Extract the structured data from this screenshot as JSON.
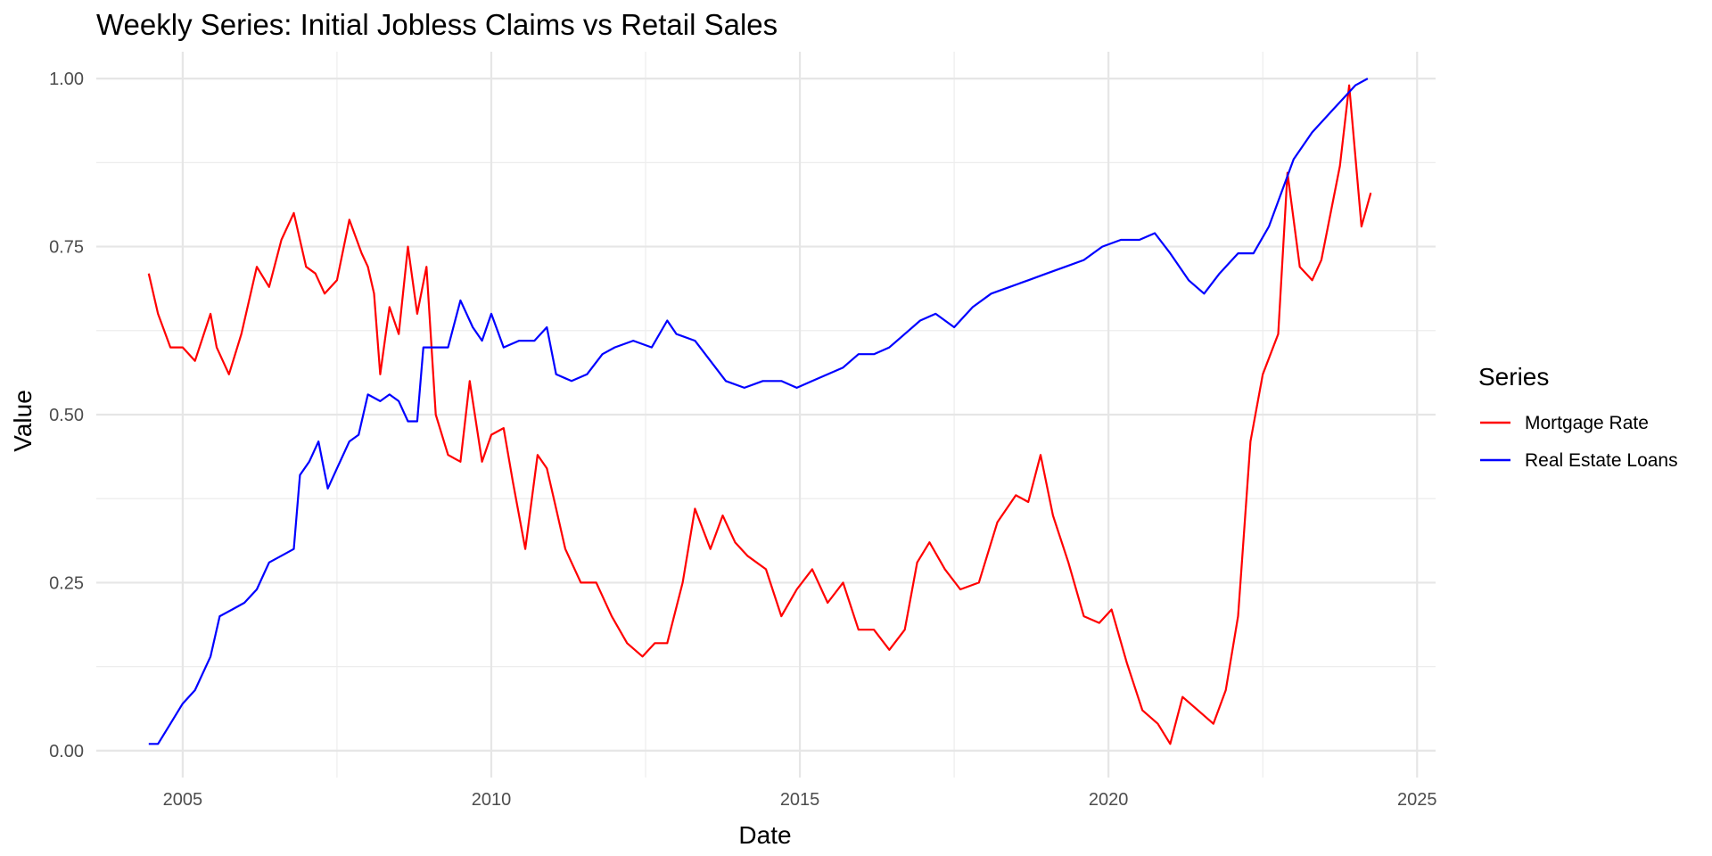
{
  "chart_data": {
    "type": "line",
    "title": "Weekly Series: Initial Jobless Claims vs Retail Sales",
    "xlabel": "Date",
    "ylabel": "Value",
    "xlim": [
      2003.6,
      2025.3
    ],
    "ylim": [
      -0.04,
      1.04
    ],
    "x_ticks": [
      2005,
      2010,
      2015,
      2020,
      2025
    ],
    "x_tick_labels": [
      "2005",
      "2010",
      "2015",
      "2020",
      "2025"
    ],
    "y_ticks": [
      0,
      0.25,
      0.5,
      0.75,
      1.0
    ],
    "y_tick_labels": [
      "0.00",
      "0.25",
      "0.50",
      "0.75",
      "1.00"
    ],
    "grid": true,
    "legend": {
      "title": "Series",
      "position": "right"
    },
    "series": [
      {
        "name": "Mortgage Rate",
        "color": "#ff0000",
        "x": [
          2004.45,
          2004.6,
          2004.8,
          2005.0,
          2005.2,
          2005.45,
          2005.55,
          2005.75,
          2005.95,
          2006.2,
          2006.4,
          2006.6,
          2006.8,
          2007.0,
          2007.15,
          2007.3,
          2007.5,
          2007.7,
          2007.9,
          2008.0,
          2008.1,
          2008.2,
          2008.35,
          2008.5,
          2008.65,
          2008.8,
          2008.95,
          2009.1,
          2009.3,
          2009.5,
          2009.65,
          2009.85,
          2010.0,
          2010.2,
          2010.35,
          2010.55,
          2010.75,
          2010.9,
          2011.05,
          2011.2,
          2011.45,
          2011.7,
          2011.95,
          2012.2,
          2012.45,
          2012.65,
          2012.85,
          2013.1,
          2013.3,
          2013.55,
          2013.75,
          2013.95,
          2014.15,
          2014.45,
          2014.7,
          2014.95,
          2015.2,
          2015.45,
          2015.7,
          2015.95,
          2016.2,
          2016.45,
          2016.7,
          2016.9,
          2017.1,
          2017.35,
          2017.6,
          2017.9,
          2018.2,
          2018.5,
          2018.7,
          2018.9,
          2019.1,
          2019.35,
          2019.6,
          2019.85,
          2020.05,
          2020.3,
          2020.55,
          2020.8,
          2021.0,
          2021.2,
          2021.45,
          2021.7,
          2021.9,
          2022.1,
          2022.3,
          2022.5,
          2022.75,
          2022.9,
          2023.1,
          2023.3,
          2023.45,
          2023.6,
          2023.75,
          2023.9,
          2024.1,
          2024.25
        ],
        "y": [
          0.71,
          0.65,
          0.6,
          0.6,
          0.58,
          0.65,
          0.6,
          0.56,
          0.62,
          0.72,
          0.69,
          0.76,
          0.8,
          0.72,
          0.71,
          0.68,
          0.7,
          0.79,
          0.74,
          0.72,
          0.68,
          0.56,
          0.66,
          0.62,
          0.75,
          0.65,
          0.72,
          0.5,
          0.44,
          0.43,
          0.55,
          0.43,
          0.47,
          0.48,
          0.4,
          0.3,
          0.44,
          0.42,
          0.36,
          0.3,
          0.25,
          0.25,
          0.2,
          0.16,
          0.14,
          0.16,
          0.16,
          0.25,
          0.36,
          0.3,
          0.35,
          0.31,
          0.29,
          0.27,
          0.2,
          0.24,
          0.27,
          0.22,
          0.25,
          0.18,
          0.18,
          0.15,
          0.18,
          0.28,
          0.31,
          0.27,
          0.24,
          0.25,
          0.34,
          0.38,
          0.37,
          0.44,
          0.35,
          0.28,
          0.2,
          0.19,
          0.21,
          0.13,
          0.06,
          0.04,
          0.01,
          0.08,
          0.06,
          0.04,
          0.09,
          0.2,
          0.46,
          0.56,
          0.62,
          0.86,
          0.72,
          0.7,
          0.73,
          0.8,
          0.87,
          0.99,
          0.78,
          0.83
        ]
      },
      {
        "name": "Real Estate Loans",
        "color": "#0000ff",
        "x": [
          2004.45,
          2004.6,
          2004.8,
          2005.0,
          2005.2,
          2005.45,
          2005.6,
          2005.8,
          2006.0,
          2006.2,
          2006.4,
          2006.6,
          2006.8,
          2006.9,
          2007.05,
          2007.2,
          2007.35,
          2007.5,
          2007.7,
          2007.85,
          2008.0,
          2008.2,
          2008.35,
          2008.5,
          2008.65,
          2008.8,
          2008.9,
          2009.1,
          2009.3,
          2009.5,
          2009.7,
          2009.85,
          2010.0,
          2010.2,
          2010.45,
          2010.7,
          2010.9,
          2011.05,
          2011.3,
          2011.55,
          2011.8,
          2012.0,
          2012.3,
          2012.6,
          2012.85,
          2013.0,
          2013.3,
          2013.55,
          2013.8,
          2014.1,
          2014.4,
          2014.7,
          2014.95,
          2015.2,
          2015.45,
          2015.7,
          2015.95,
          2016.2,
          2016.45,
          2016.7,
          2016.95,
          2017.2,
          2017.5,
          2017.8,
          2018.1,
          2018.4,
          2018.7,
          2019.0,
          2019.3,
          2019.6,
          2019.9,
          2020.2,
          2020.5,
          2020.75,
          2021.0,
          2021.3,
          2021.55,
          2021.8,
          2022.1,
          2022.35,
          2022.6,
          2022.8,
          2023.0,
          2023.3,
          2023.6,
          2023.8,
          2024.0,
          2024.2
        ],
        "y": [
          0.01,
          0.01,
          0.04,
          0.07,
          0.09,
          0.14,
          0.2,
          0.21,
          0.22,
          0.24,
          0.28,
          0.29,
          0.3,
          0.41,
          0.43,
          0.46,
          0.39,
          0.42,
          0.46,
          0.47,
          0.53,
          0.52,
          0.53,
          0.52,
          0.49,
          0.49,
          0.6,
          0.6,
          0.6,
          0.67,
          0.63,
          0.61,
          0.65,
          0.6,
          0.61,
          0.61,
          0.63,
          0.56,
          0.55,
          0.56,
          0.59,
          0.6,
          0.61,
          0.6,
          0.64,
          0.62,
          0.61,
          0.58,
          0.55,
          0.54,
          0.55,
          0.55,
          0.54,
          0.55,
          0.56,
          0.57,
          0.59,
          0.59,
          0.6,
          0.62,
          0.64,
          0.65,
          0.63,
          0.66,
          0.68,
          0.69,
          0.7,
          0.71,
          0.72,
          0.73,
          0.75,
          0.76,
          0.76,
          0.77,
          0.74,
          0.7,
          0.68,
          0.71,
          0.74,
          0.74,
          0.78,
          0.83,
          0.88,
          0.92,
          0.95,
          0.97,
          0.99,
          1.0
        ]
      }
    ]
  }
}
